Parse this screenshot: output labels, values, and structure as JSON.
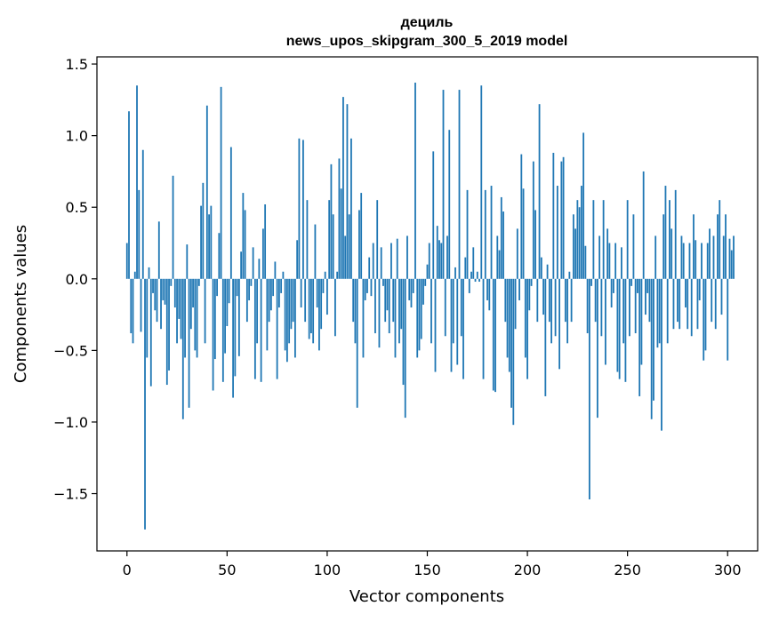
{
  "chart_data": {
    "type": "bar",
    "title_line1": "дециль",
    "title_line2": "news_upos_skipgram_300_5_2019 model",
    "xlabel": "Vector components",
    "ylabel": "Components values",
    "xlim": [
      -15,
      315
    ],
    "ylim": [
      -1.9,
      1.55
    ],
    "xticks": [
      0,
      50,
      100,
      150,
      200,
      250,
      300
    ],
    "xtick_labels": [
      "0",
      "50",
      "100",
      "150",
      "200",
      "250",
      "300"
    ],
    "yticks": [
      -1.5,
      -1.0,
      -0.5,
      0.0,
      0.5,
      1.0,
      1.5
    ],
    "ytick_labels": [
      "−1.5",
      "−1.0",
      "−0.5",
      "0.0",
      "0.5",
      "1.0",
      "1.5"
    ],
    "bar_color": "#1f77b4",
    "values": [
      0.25,
      1.17,
      -0.38,
      -0.45,
      0.05,
      1.35,
      0.62,
      -0.37,
      0.9,
      -1.75,
      -0.55,
      0.08,
      -0.75,
      -0.1,
      -0.22,
      -0.3,
      0.4,
      -0.35,
      -0.15,
      -0.18,
      -0.74,
      -0.64,
      -0.05,
      0.72,
      -0.2,
      -0.45,
      -0.28,
      -0.42,
      -0.98,
      -0.55,
      0.24,
      -0.9,
      -0.35,
      -0.2,
      -0.5,
      -0.55,
      -0.05,
      0.51,
      0.67,
      -0.45,
      1.21,
      0.45,
      0.51,
      -0.78,
      -0.56,
      -0.12,
      0.32,
      1.34,
      -0.72,
      -0.52,
      -0.33,
      -0.17,
      0.92,
      -0.83,
      -0.68,
      -0.12,
      -0.54,
      0.19,
      0.6,
      0.48,
      -0.3,
      -0.15,
      -0.05,
      0.22,
      -0.7,
      -0.45,
      0.14,
      -0.72,
      0.35,
      0.52,
      -0.5,
      -0.3,
      -0.22,
      -0.12,
      0.12,
      -0.7,
      -0.2,
      -0.1,
      0.05,
      -0.5,
      -0.58,
      -0.45,
      -0.35,
      -0.3,
      -0.55,
      0.27,
      0.98,
      -0.2,
      0.97,
      -0.3,
      0.55,
      -0.42,
      -0.38,
      -0.45,
      0.38,
      -0.2,
      -0.5,
      -0.35,
      -0.1,
      0.05,
      -0.25,
      0.55,
      0.8,
      0.45,
      -0.4,
      0.05,
      0.84,
      0.63,
      1.27,
      0.3,
      1.22,
      0.45,
      0.98,
      -0.3,
      -0.45,
      -0.9,
      0.48,
      0.6,
      -0.55,
      -0.15,
      -0.1,
      0.15,
      -0.12,
      0.25,
      -0.38,
      0.55,
      -0.48,
      0.22,
      -0.05,
      -0.3,
      -0.22,
      -0.38,
      0.25,
      -0.3,
      -0.55,
      0.28,
      -0.45,
      -0.35,
      -0.74,
      -0.97,
      0.3,
      -0.15,
      -0.2,
      -0.1,
      1.37,
      -0.55,
      -0.5,
      -0.42,
      -0.18,
      -0.05,
      0.1,
      0.25,
      -0.45,
      0.89,
      -0.65,
      0.37,
      0.27,
      0.25,
      1.32,
      -0.4,
      0.3,
      1.04,
      -0.65,
      -0.45,
      0.08,
      -0.6,
      1.32,
      -0.4,
      -0.7,
      0.15,
      0.62,
      -0.1,
      0.05,
      0.22,
      -0.02,
      0.05,
      -0.02,
      1.35,
      -0.7,
      0.62,
      -0.15,
      -0.22,
      0.65,
      -0.78,
      -0.79,
      0.3,
      0.2,
      0.57,
      0.47,
      -0.3,
      -0.55,
      -0.65,
      -0.9,
      -1.02,
      -0.35,
      0.35,
      -0.15,
      0.87,
      0.63,
      -0.55,
      -0.7,
      -0.22,
      -0.05,
      0.82,
      0.48,
      -0.3,
      1.22,
      0.15,
      -0.25,
      -0.82,
      0.1,
      -0.3,
      -0.45,
      0.88,
      -0.4,
      0.65,
      -0.63,
      0.82,
      0.85,
      -0.3,
      -0.45,
      0.05,
      -0.3,
      0.45,
      0.35,
      0.55,
      0.5,
      0.65,
      1.02,
      0.23,
      -0.38,
      -1.54,
      -0.05,
      0.55,
      -0.3,
      -0.97,
      0.3,
      -0.4,
      0.55,
      -0.6,
      0.35,
      0.25,
      -0.2,
      -0.1,
      0.25,
      -0.65,
      -0.7,
      0.22,
      -0.45,
      -0.72,
      0.55,
      -0.4,
      -0.05,
      0.45,
      -0.38,
      -0.1,
      -0.82,
      -0.6,
      0.75,
      -0.25,
      -0.1,
      -0.3,
      -0.98,
      -0.85,
      0.3,
      -0.48,
      -0.45,
      -1.06,
      0.45,
      0.65,
      -0.45,
      0.55,
      0.35,
      -0.35,
      0.62,
      -0.3,
      -0.35,
      0.3,
      0.25,
      -0.2,
      -0.35,
      0.25,
      -0.4,
      0.45,
      0.27,
      -0.35,
      -0.15,
      0.25,
      -0.57,
      -0.5,
      0.25,
      0.35,
      -0.3,
      0.3,
      -0.35,
      0.45,
      0.55,
      -0.25,
      0.3,
      0.45,
      -0.57,
      0.28,
      0.2,
      0.3
    ]
  }
}
